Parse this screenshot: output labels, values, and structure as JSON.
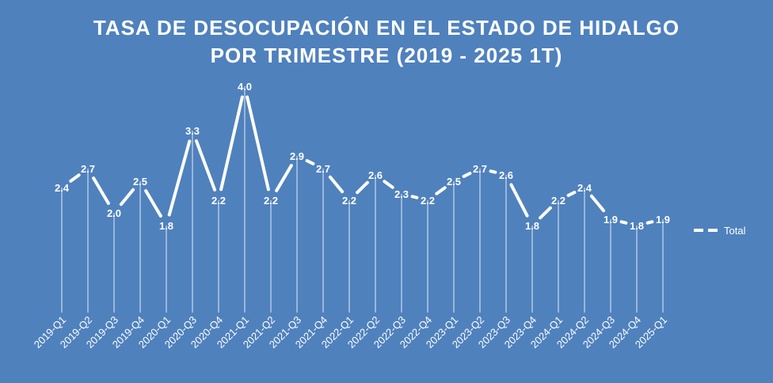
{
  "chart_data": {
    "type": "line",
    "title_line1": "TASA DE DESOCUPACIÓN EN EL ESTADO DE HIDALGO",
    "title_line2": "POR TRIMESTRE (2019 - 2025 1T)",
    "categories": [
      "2019-Q1",
      "2019-Q2",
      "2019-Q3",
      "2019-Q4",
      "2020-Q1",
      "2020-Q3",
      "2020-Q4",
      "2021-Q1",
      "2021-Q2",
      "2021-Q3",
      "2021-Q4",
      "2022-Q1",
      "2022-Q2",
      "2022-Q3",
      "2022-Q4",
      "2023-Q1",
      "2023-Q2",
      "2023-Q3",
      "2023-Q4",
      "2024-Q1",
      "2024-Q2",
      "2024-Q3",
      "2024-Q4",
      "2025-Q1"
    ],
    "series": [
      {
        "name": "Total",
        "values": [
          2.4,
          2.7,
          2.0,
          2.5,
          1.8,
          3.3,
          2.2,
          4.0,
          2.2,
          2.9,
          2.7,
          2.2,
          2.6,
          2.3,
          2.2,
          2.5,
          2.7,
          2.6,
          1.8,
          2.2,
          2.4,
          1.9,
          1.8,
          1.9
        ],
        "labels": [
          "2.4",
          "2.7",
          "2.0",
          "2.5",
          "1.8",
          "3.3",
          "2.2",
          "4.0",
          "2.2",
          "2.9",
          "2.7",
          "2.2",
          "2.6",
          "2.3",
          "2.2",
          "2.5",
          "2.7",
          "2.6",
          "1.8",
          "2.2",
          "2.4",
          "1.9",
          "1.8",
          "1.9"
        ],
        "color": "#FFFFFF"
      }
    ],
    "legend_position": "right",
    "grid": false,
    "background_color": "#4F81BD"
  }
}
